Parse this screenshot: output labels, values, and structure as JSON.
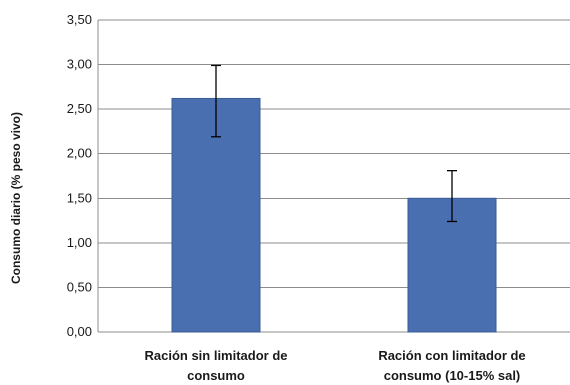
{
  "chart_data": {
    "type": "bar",
    "categories": [
      [
        "Ración sin limitador de",
        "consumo"
      ],
      [
        "Ración con limitador de",
        "consumo (10-15% sal)"
      ]
    ],
    "values": [
      2.62,
      1.5
    ],
    "error_bars": [
      {
        "low": 2.19,
        "high": 2.99
      },
      {
        "low": 1.24,
        "high": 1.81
      }
    ],
    "ylabel": "Consumo diario (% peso vivo)",
    "xlabel": "",
    "ylim": [
      0,
      3.5
    ],
    "yticks": [
      "0,00",
      "0,50",
      "1,00",
      "1,50",
      "2,00",
      "2,50",
      "3,00",
      "3,50"
    ],
    "grid": true,
    "legend": "none",
    "bar_color": "#4a6fb0",
    "bar_edge_color": "#3b5c96",
    "grid_color": "#8c8c8c",
    "error_bar_color": "#000000"
  }
}
